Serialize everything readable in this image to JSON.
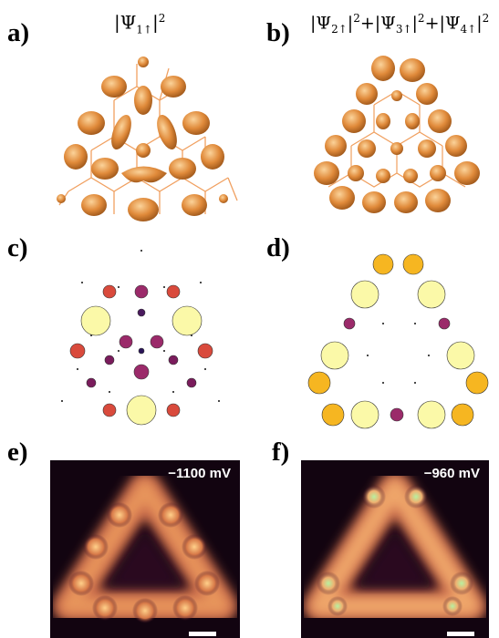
{
  "panels": {
    "a": {
      "letter": "a)",
      "caption_main": "|Ψ",
      "caption_sub": "1↑",
      "caption_tail": "|",
      "caption_sup": "2"
    },
    "b": {
      "letter": "b)",
      "caption": "|Ψ2↑|2+|Ψ3↑|2+|Ψ4↑|2",
      "terms": [
        {
          "sub": "2↑"
        },
        {
          "sub": "3↑"
        },
        {
          "sub": "4↑"
        }
      ],
      "sup": "2"
    },
    "c": {
      "letter": "c)"
    },
    "d": {
      "letter": "d)"
    },
    "e": {
      "letter": "e)",
      "bias": "−1100 mV"
    },
    "f": {
      "letter": "f)",
      "bias": "−960 mV"
    }
  },
  "colors": {
    "lobe": "#e08a3a",
    "bond": "#f0a060",
    "pale_yellow": "#fbf9a8",
    "red": "#d94a3c",
    "purple_dark": "#7a1c5c",
    "purple_mid": "#9b2a6a",
    "navy": "#2a1458",
    "orange": "#f6b621",
    "stm_bg": "#0e0308",
    "stm_glow": "#f0a060"
  }
}
